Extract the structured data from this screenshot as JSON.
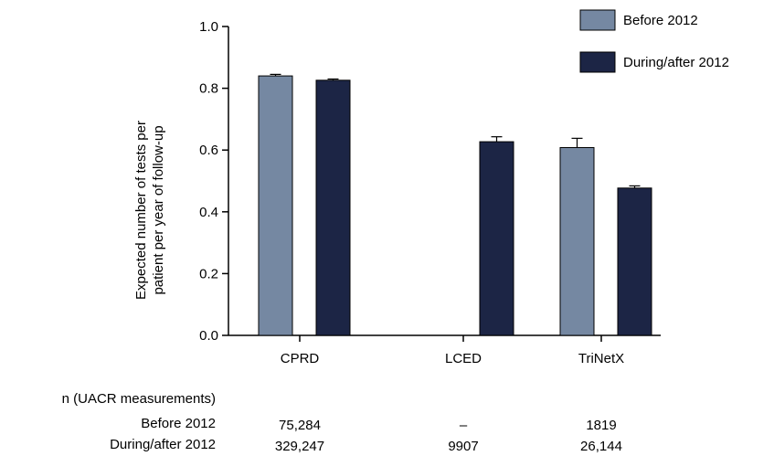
{
  "chart_data": {
    "type": "bar",
    "ylabel": [
      "Expected number of tests per",
      "patient per year of follow-up"
    ],
    "ylim": [
      0,
      1.0
    ],
    "yticks": [
      "0.0",
      "0.2",
      "0.4",
      "0.6",
      "0.8",
      "1.0"
    ],
    "yticks_values": [
      0,
      0.2,
      0.4,
      0.6,
      0.8,
      1.0
    ],
    "categories": [
      "CPRD",
      "LCED",
      "TriNetX"
    ],
    "legend_position": "top-right",
    "series": [
      {
        "name": "Before 2012",
        "color": "#7588a2",
        "values": [
          0.84,
          null,
          0.608
        ],
        "error": [
          0.005,
          null,
          0.03
        ]
      },
      {
        "name": "During/after 2012",
        "color": "#1c2545",
        "values": [
          0.826,
          0.627,
          0.477
        ],
        "error": [
          0.004,
          0.016,
          0.007
        ]
      }
    ],
    "grid": false
  },
  "table": {
    "header": "n (UACR measurements)",
    "rows": [
      {
        "label": "Before 2012",
        "values": [
          "75,284",
          "–",
          "1819"
        ]
      },
      {
        "label": "During/after 2012",
        "values": [
          "329,247",
          "9907",
          "26,144"
        ]
      }
    ]
  }
}
